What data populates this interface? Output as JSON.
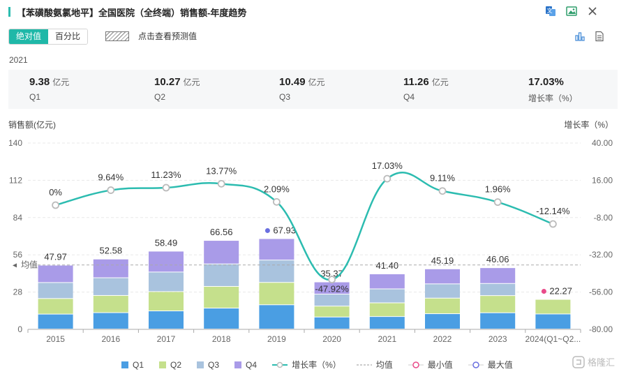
{
  "header": {
    "title": "【苯磺酸氨氯地平】全国医院（全终端）销售额-年度趋势"
  },
  "controls": {
    "toggle": [
      "绝对值",
      "百分比"
    ],
    "active_index": 0,
    "forecast_label": "点击查看预测值"
  },
  "summary": {
    "year": "2021",
    "cells": [
      {
        "value": "9.38",
        "unit": "亿元",
        "label": "Q1"
      },
      {
        "value": "10.27",
        "unit": "亿元",
        "label": "Q2"
      },
      {
        "value": "10.49",
        "unit": "亿元",
        "label": "Q3"
      },
      {
        "value": "11.26",
        "unit": "亿元",
        "label": "Q4"
      },
      {
        "value": "17.03%",
        "unit": "",
        "label": "增长率（%）"
      }
    ]
  },
  "watermark": "格隆汇",
  "chart_data": {
    "type": "bar",
    "stacked": true,
    "title": "",
    "ylabel": "销售额(亿元)",
    "y2label": "增长率（%）",
    "ylim": [
      0,
      140
    ],
    "y2lim": [
      -80,
      40
    ],
    "yticks": [
      "0",
      "28",
      "56",
      "84",
      "112",
      "140"
    ],
    "y2ticks": [
      "-80.00",
      "-56.00",
      "-32.00",
      "-8.00",
      "16.00",
      "40.00"
    ],
    "categories": [
      "2015",
      "2016",
      "2017",
      "2018",
      "2019",
      "2020",
      "2021",
      "2022",
      "2023",
      "2024(Q1~Q2..."
    ],
    "series": [
      {
        "name": "Q1",
        "color": "#4a9ee3",
        "values": [
          11.2,
          12.3,
          13.6,
          15.7,
          18.2,
          9.0,
          9.38,
          11.5,
          12.2,
          11.3
        ]
      },
      {
        "name": "Q2",
        "color": "#c5e08c",
        "values": [
          11.7,
          12.9,
          14.5,
          16.3,
          16.8,
          8.2,
          10.27,
          11.7,
          12.9,
          10.97
        ]
      },
      {
        "name": "Q3",
        "color": "#a9c3de",
        "values": [
          12.0,
          13.3,
          14.7,
          16.9,
          16.8,
          9.0,
          10.49,
          10.7,
          9.1,
          0
        ]
      },
      {
        "name": "Q4",
        "color": "#a99be8",
        "values": [
          13.07,
          14.08,
          15.69,
          17.66,
          16.13,
          9.17,
          11.26,
          11.29,
          11.86,
          0
        ]
      }
    ],
    "totals": [
      47.97,
      52.58,
      58.49,
      66.56,
      67.93,
      35.37,
      41.4,
      45.19,
      46.06,
      22.27
    ],
    "growth": {
      "name": "增长率（%）",
      "color": "#2cbcb0",
      "values": [
        0,
        9.64,
        11.23,
        13.77,
        2.09,
        -47.92,
        17.03,
        9.11,
        1.96,
        -12.14
      ],
      "labels": [
        "0%",
        "9.64%",
        "11.23%",
        "13.77%",
        "2.09%",
        "-47.92%",
        "17.03%",
        "9.11%",
        "1.96%",
        "-12.14%"
      ]
    },
    "mean": {
      "name": "均值",
      "label": "均值",
      "value": 48.4
    },
    "min": {
      "name": "最小值",
      "index": 9,
      "color": "#e94b8a"
    },
    "max": {
      "name": "最大值",
      "index": 4,
      "color": "#6a6fe0"
    },
    "legend": [
      "Q1",
      "Q2",
      "Q3",
      "Q4",
      "增长率（%）",
      "均值",
      "最小值",
      "最大值"
    ]
  }
}
